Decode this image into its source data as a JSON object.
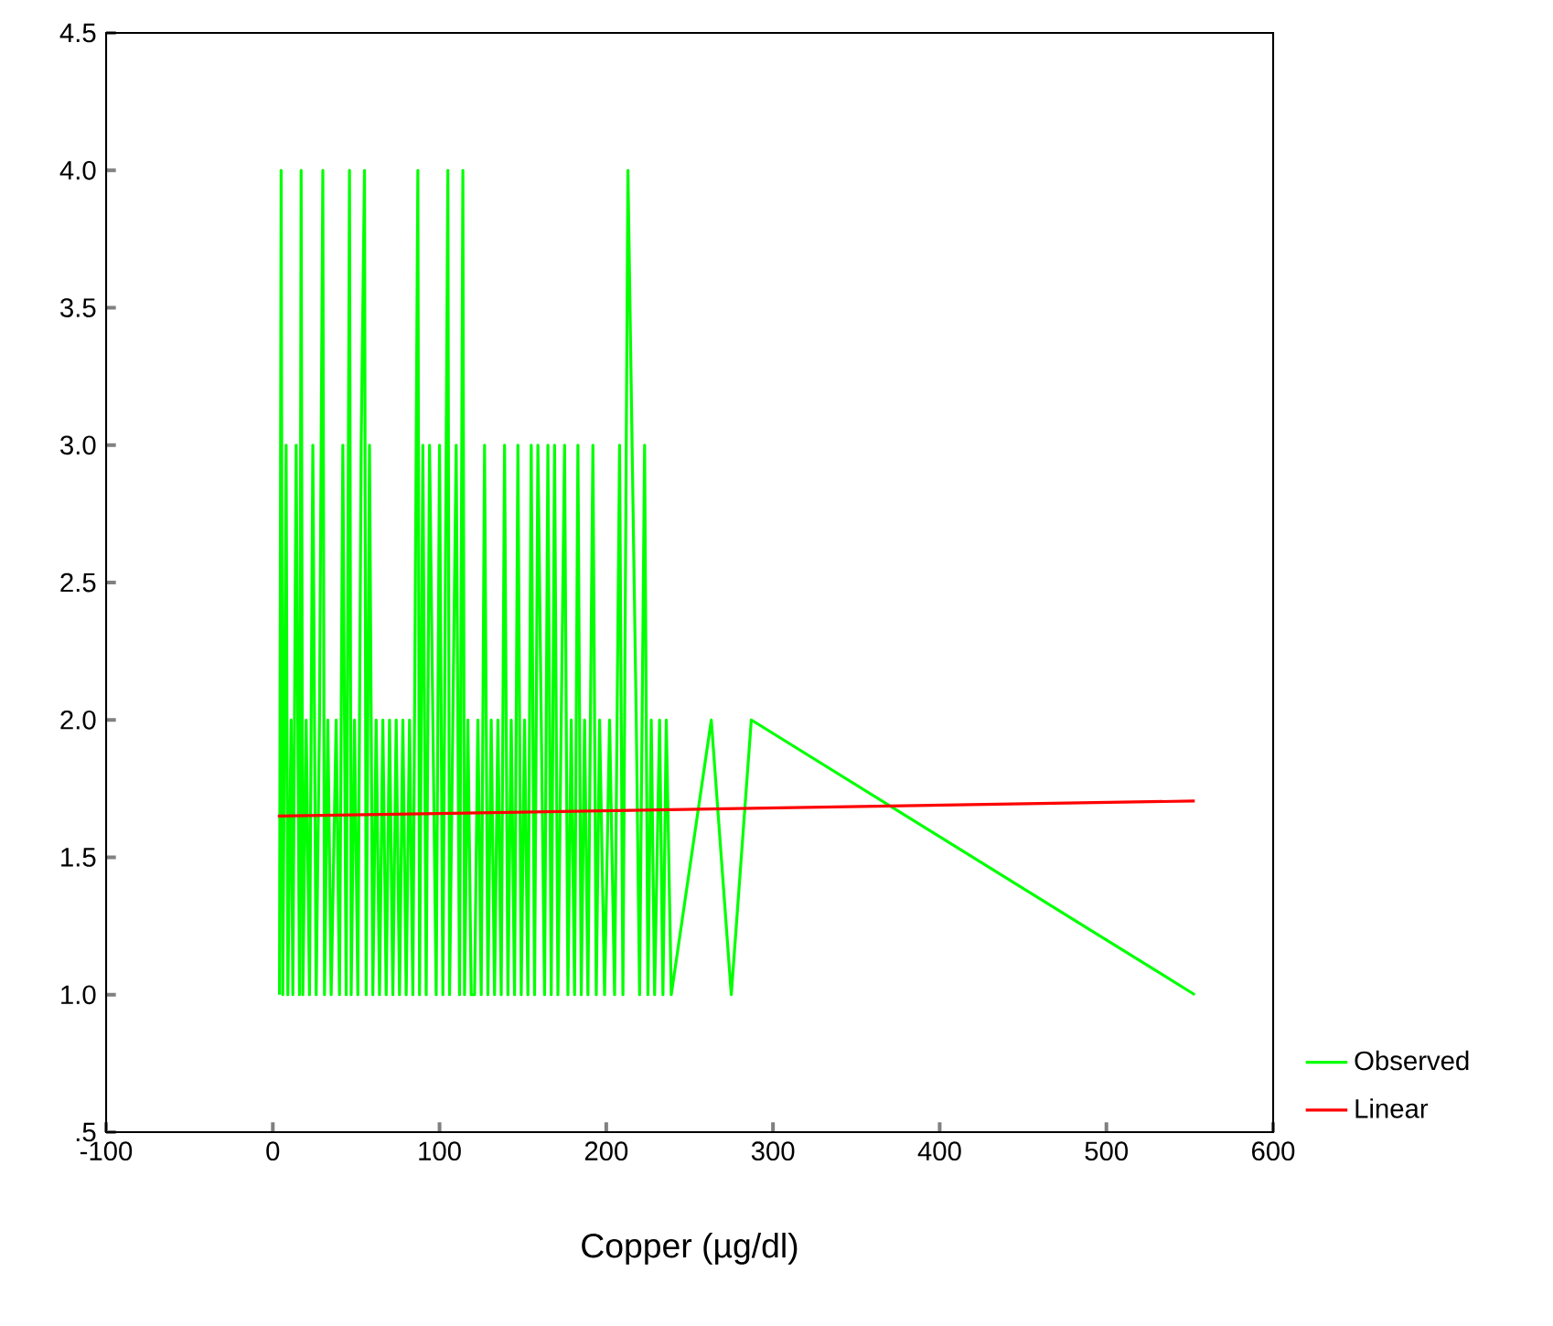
{
  "chart_data": {
    "type": "line",
    "xlabel": "Copper (µg/dl)",
    "xlim": [
      -100,
      600
    ],
    "xticks": [
      -100,
      0,
      100,
      200,
      300,
      400,
      500,
      600
    ],
    "ylim": [
      0.5,
      4.5
    ],
    "yticks": [
      {
        "value": 0.5,
        "label": ".5"
      },
      {
        "value": 1.0,
        "label": "1.0"
      },
      {
        "value": 1.5,
        "label": "1.5"
      },
      {
        "value": 2.0,
        "label": "2.0"
      },
      {
        "value": 2.5,
        "label": "2.5"
      },
      {
        "value": 3.0,
        "label": "3.0"
      },
      {
        "value": 3.5,
        "label": "3.5"
      },
      {
        "value": 4.0,
        "label": "4.0"
      },
      {
        "value": 4.5,
        "label": "4.5"
      }
    ],
    "legend": "right",
    "grid": false,
    "marker": "none",
    "line_style": "solid",
    "series": [
      {
        "name": "Observed",
        "color": "#00ff00",
        "x": [
          4,
          5,
          6,
          8,
          9,
          11,
          12,
          14,
          16,
          17,
          18,
          20,
          22,
          24,
          26,
          28,
          30,
          31,
          33,
          35,
          38,
          40,
          42,
          44,
          46,
          47,
          49,
          51,
          53,
          55,
          56,
          58,
          60,
          62,
          64,
          66,
          68,
          70,
          72,
          74,
          76,
          78,
          80,
          82,
          84,
          86,
          87,
          88,
          90,
          92,
          94,
          96,
          98,
          100,
          102,
          104,
          105,
          106,
          108,
          110,
          112,
          114,
          115,
          117,
          119,
          121,
          123,
          125,
          127,
          129,
          131,
          133,
          135,
          137,
          139,
          141,
          143,
          145,
          147,
          149,
          151,
          153,
          155,
          157,
          159,
          161,
          163,
          165,
          167,
          169,
          171,
          173,
          175,
          177,
          179,
          181,
          183,
          185,
          187,
          189,
          192,
          194,
          196,
          199,
          202,
          205,
          208,
          210,
          213,
          218,
          220,
          223,
          225,
          227,
          229,
          232,
          234,
          236,
          239,
          263,
          275,
          287,
          553
        ],
        "values": [
          1,
          4,
          1,
          3,
          1,
          2,
          1,
          3,
          1,
          4,
          1,
          2,
          1,
          3,
          1,
          2,
          4,
          1,
          2,
          1,
          2,
          1,
          3,
          1,
          4,
          1,
          2,
          1,
          3,
          4,
          1,
          3,
          1,
          2,
          1,
          2,
          1,
          2,
          1,
          2,
          1,
          2,
          1,
          2,
          1,
          3,
          4,
          1,
          3,
          1,
          3,
          2,
          1,
          3,
          1,
          3,
          4,
          1,
          2,
          3,
          1,
          4,
          1,
          2,
          1,
          1,
          2,
          1,
          3,
          1,
          2,
          1,
          2,
          1,
          3,
          1,
          2,
          1,
          3,
          1,
          2,
          1,
          3,
          1,
          3,
          2,
          1,
          3,
          1,
          3,
          1,
          2,
          3,
          1,
          2,
          1,
          3,
          1,
          2,
          1,
          3,
          1,
          2,
          1,
          2,
          1,
          3,
          1,
          4,
          2,
          1,
          3,
          1,
          2,
          1,
          2,
          1,
          2,
          1,
          2,
          1,
          2,
          1
        ]
      },
      {
        "name": "Linear",
        "color": "#ff0000",
        "x": [
          3,
          553
        ],
        "values": [
          1.65,
          1.705
        ]
      }
    ]
  }
}
